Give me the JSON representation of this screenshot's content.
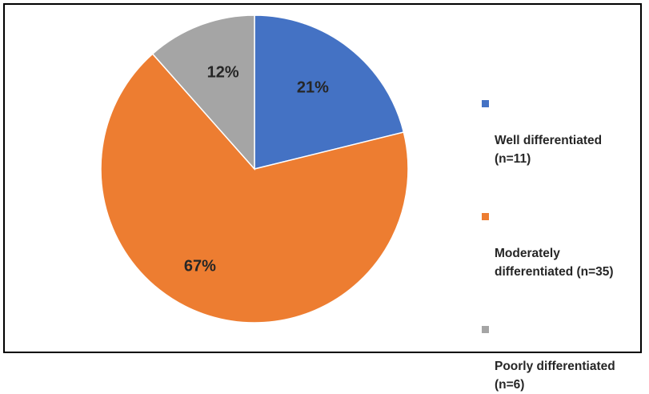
{
  "chart_data": {
    "type": "pie",
    "title": "",
    "slices": [
      {
        "label": "Well differentiated\n(n=11)",
        "value": 11,
        "percent_label": "21%",
        "color": "#4472C4"
      },
      {
        "label": "Moderately\ndifferentiated (n=35)",
        "value": 35,
        "percent_label": "67%",
        "color": "#ED7D31"
      },
      {
        "label": "Poorly differentiated\n(n=6)",
        "value": 6,
        "percent_label": "12%",
        "color": "#A5A5A5"
      }
    ],
    "start_angle_deg": 0,
    "direction": "clockwise",
    "legend_position": "right"
  }
}
